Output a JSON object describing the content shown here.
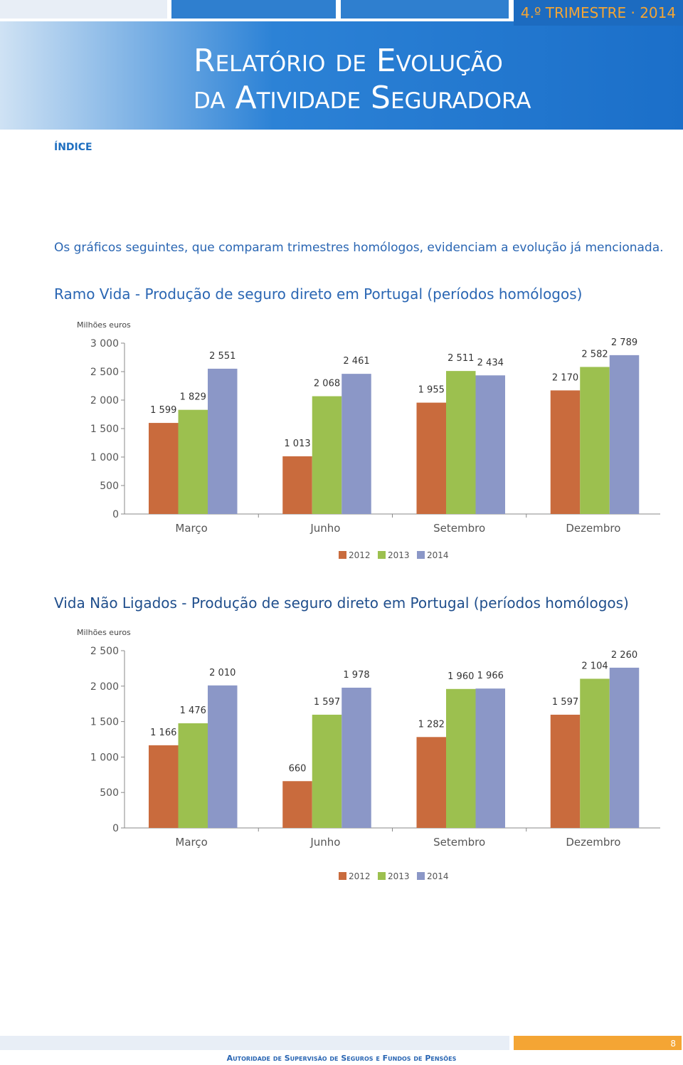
{
  "header": {
    "badge": "4.º TRIMESTRE · 2014",
    "title_line1": "Relatório de Evolução",
    "title_line2": "da Atividade Seguradora"
  },
  "index": "ÍNDICE",
  "intro": "Os gráficos seguintes, que comparam trimestres homólogos, evidenciam a evolução já mencionada.",
  "chart_data": [
    {
      "type": "bar",
      "title": "Ramo Vida - Produção de seguro direto em Portugal (períodos homólogos)",
      "y_label": "Milhões euros",
      "categories": [
        "Março",
        "Junho",
        "Setembro",
        "Dezembro"
      ],
      "series": [
        {
          "name": "2012",
          "color": "#c96b3d",
          "values": [
            1599,
            1013,
            1955,
            2170
          ],
          "value_labels": [
            "1 599",
            "1 013",
            "1 955",
            "2 170"
          ]
        },
        {
          "name": "2013",
          "color": "#9cc04f",
          "values": [
            1829,
            2068,
            2511,
            2582
          ],
          "value_labels": [
            "1 829",
            "2 068",
            "2 511",
            "2 582"
          ]
        },
        {
          "name": "2014",
          "color": "#8b97c7",
          "values": [
            2551,
            2461,
            2434,
            2789
          ],
          "value_labels": [
            "2 551",
            "2 461",
            "2 434",
            "2 789"
          ]
        }
      ],
      "ylim": [
        0,
        3000
      ],
      "yticks": [
        0,
        500,
        {
          "value": 1000,
          "label": "1 000"
        },
        {
          "value": 1500,
          "label": "1 500"
        },
        {
          "value": 2000,
          "label": "2 000"
        },
        {
          "value": 2500,
          "label": "2 500"
        },
        {
          "value": 3000,
          "label": "3 000"
        }
      ],
      "legend": "bottom"
    },
    {
      "type": "bar",
      "title": "Vida Não Ligados - Produção de seguro direto em Portugal (períodos homólogos)",
      "y_label": "Milhões euros",
      "categories": [
        "Março",
        "Junho",
        "Setembro",
        "Dezembro"
      ],
      "series": [
        {
          "name": "2012",
          "color": "#c96b3d",
          "values": [
            1166,
            660,
            1282,
            1597
          ],
          "value_labels": [
            "1 166",
            "660",
            "1 282",
            "1 597"
          ]
        },
        {
          "name": "2013",
          "color": "#9cc04f",
          "values": [
            1476,
            1597,
            1960,
            2104
          ],
          "value_labels": [
            "1 476",
            "1 597",
            "1 960",
            "2 104"
          ]
        },
        {
          "name": "2014",
          "color": "#8b97c7",
          "values": [
            2010,
            1978,
            1966,
            2260
          ],
          "value_labels": [
            "2 010",
            "1 978",
            "1 966",
            "2 260"
          ]
        }
      ],
      "ylim": [
        0,
        2500
      ],
      "yticks": [
        0,
        500,
        {
          "value": 1000,
          "label": "1 000"
        },
        {
          "value": 1500,
          "label": "1 500"
        },
        {
          "value": 2000,
          "label": "2 000"
        },
        {
          "value": 2500,
          "label": "2 500"
        }
      ],
      "legend": "bottom"
    }
  ],
  "footer": {
    "page": "8",
    "org": "Autoridade de Supervisão de Seguros e Fundos de Pensões"
  }
}
